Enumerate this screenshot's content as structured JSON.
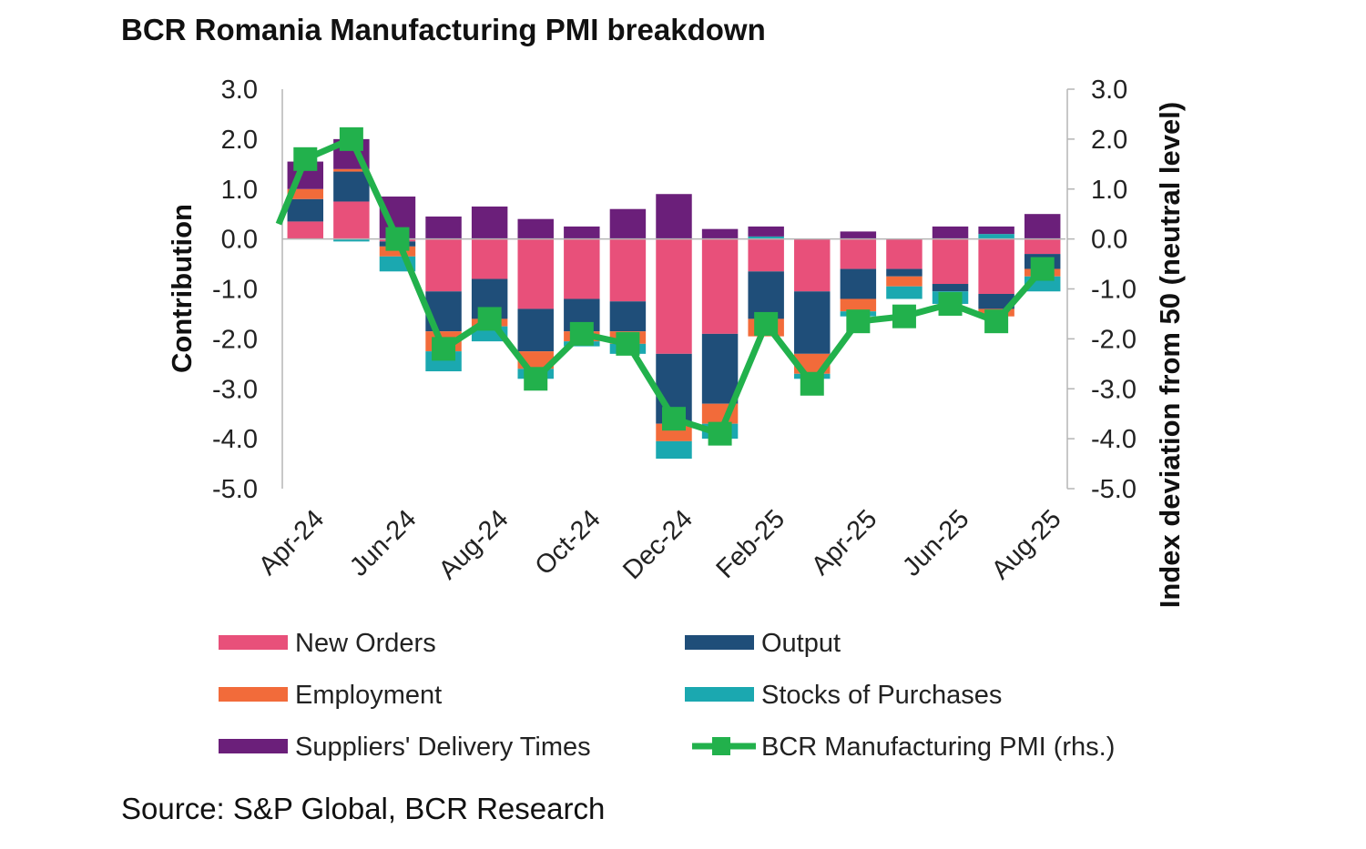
{
  "title": "BCR Romania Manufacturing PMI breakdown",
  "source": "Source: S&P Global, BCR Research",
  "chart_data": {
    "type": "bar",
    "stacked": true,
    "title": "BCR Romania Manufacturing PMI breakdown",
    "ylabel": "Contribution",
    "y2label": "Index deviation from 50 (neutral level)",
    "ylim": [
      -5,
      3
    ],
    "y2lim": [
      -5,
      3
    ],
    "yticks": [
      "3.0",
      "2.0",
      "1.0",
      "0.0",
      "-1.0",
      "-2.0",
      "-3.0",
      "-4.0",
      "-5.0"
    ],
    "categories": [
      "Apr-24",
      "May-24",
      "Jun-24",
      "Jul-24",
      "Aug-24",
      "Sep-24",
      "Oct-24",
      "Nov-24",
      "Dec-24",
      "Jan-25",
      "Feb-25",
      "Mar-25",
      "Apr-25",
      "May-25",
      "Jun-25",
      "Jul-25",
      "Aug-25"
    ],
    "xticks": [
      "Apr-24",
      "Jun-24",
      "Aug-24",
      "Oct-24",
      "Dec-24",
      "Feb-25",
      "Apr-25",
      "Jun-25",
      "Aug-25"
    ],
    "series": [
      {
        "name": "New Orders",
        "color": "#E8507A",
        "values": [
          0.35,
          0.75,
          -0.05,
          -1.05,
          -0.8,
          -1.4,
          -1.2,
          -1.25,
          -2.3,
          -1.9,
          -0.65,
          -1.05,
          -0.6,
          -0.6,
          -0.9,
          -1.1,
          -0.3
        ]
      },
      {
        "name": "Output",
        "color": "#1F4E79",
        "values": [
          0.45,
          0.6,
          -0.1,
          -0.8,
          -0.8,
          -0.85,
          -0.65,
          -0.6,
          -1.4,
          -1.4,
          -0.95,
          -1.25,
          -0.6,
          -0.15,
          -0.15,
          -0.3,
          -0.3
        ]
      },
      {
        "name": "Employment",
        "color": "#F26B3A",
        "values": [
          0.2,
          0.05,
          -0.2,
          -0.4,
          -0.15,
          -0.35,
          -0.2,
          -0.25,
          -0.35,
          -0.4,
          -0.35,
          -0.4,
          -0.25,
          -0.2,
          0.0,
          -0.15,
          -0.15
        ]
      },
      {
        "name": "Stocks of Purchases",
        "color": "#1BA8B0",
        "values": [
          0.0,
          -0.05,
          -0.3,
          -0.4,
          -0.3,
          -0.2,
          -0.1,
          -0.2,
          -0.35,
          -0.3,
          0.05,
          -0.1,
          -0.1,
          -0.25,
          -0.25,
          0.1,
          -0.3
        ]
      },
      {
        "name": "Suppliers' Delivery Times",
        "color": "#6B1F7A",
        "values": [
          0.55,
          0.6,
          0.85,
          0.45,
          0.65,
          0.4,
          0.25,
          0.6,
          0.9,
          0.2,
          0.2,
          0.0,
          0.15,
          0.0,
          0.25,
          0.15,
          0.5
        ]
      }
    ],
    "line": {
      "name": "BCR Manufacturing PMI (rhs.)",
      "color": "#22B14C",
      "values": [
        1.6,
        2.0,
        0.0,
        -2.2,
        -1.6,
        -2.8,
        -1.9,
        -2.1,
        -3.6,
        -3.9,
        -1.7,
        -2.9,
        -1.65,
        -1.55,
        -1.3,
        -1.65,
        -0.6
      ]
    },
    "legend_position": "bottom"
  }
}
